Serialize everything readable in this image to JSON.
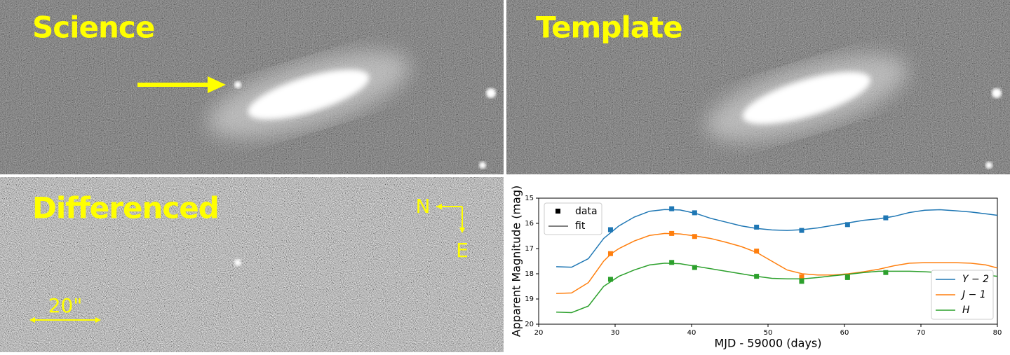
{
  "panels": {
    "science": "Science",
    "template": "Template",
    "differenced": "Differenced",
    "compass_n": "N",
    "compass_e": "E",
    "scale_bar": "20\""
  },
  "chart_data": {
    "type": "line",
    "x_label": "MJD - 59000 (days)",
    "y_label": "Apparent Magnitude (mag)",
    "xlim": [
      20,
      80
    ],
    "xticks": [
      20,
      30,
      40,
      50,
      60,
      70,
      80
    ],
    "ylim": [
      15,
      20
    ],
    "yticks": [
      15,
      16,
      17,
      18,
      19,
      20
    ],
    "y_inverted": true,
    "style_labels": [
      "data",
      "fit"
    ],
    "legend": "lower right",
    "x": [
      22.3,
      24.3,
      26.5,
      28.5,
      29.5,
      30.5,
      32.5,
      34.5,
      36.5,
      38.5,
      40.5,
      42.5,
      44.5,
      46.5,
      48.5,
      50.5,
      52.5,
      54.5,
      56.5,
      58.5,
      60.5,
      62.5,
      64.5,
      66.5,
      68.5,
      70.5,
      72.5,
      74.5,
      76.5,
      78.5,
      80
    ],
    "series": [
      {
        "name": "Y − 2",
        "color": "#1f77b4",
        "values": [
          17.72,
          17.74,
          17.4,
          16.6,
          16.35,
          16.1,
          15.75,
          15.52,
          15.45,
          15.47,
          15.6,
          15.8,
          15.95,
          16.1,
          16.2,
          16.26,
          16.28,
          16.25,
          16.18,
          16.08,
          15.98,
          15.88,
          15.82,
          15.72,
          15.57,
          15.48,
          15.46,
          15.5,
          15.55,
          15.62,
          15.68
        ],
        "points_x": [
          29.4,
          37.4,
          40.4,
          48.5,
          54.4,
          60.4,
          65.4
        ],
        "points": [
          16.25,
          15.42,
          15.58,
          16.15,
          16.28,
          16.05,
          15.78
        ]
      },
      {
        "name": "J − 1",
        "color": "#ff7f0e",
        "values": [
          18.78,
          18.76,
          18.35,
          17.5,
          17.2,
          17.0,
          16.7,
          16.48,
          16.4,
          16.42,
          16.5,
          16.6,
          16.75,
          16.92,
          17.15,
          17.5,
          17.85,
          18.0,
          18.05,
          18.05,
          18.0,
          17.92,
          17.82,
          17.68,
          17.58,
          17.56,
          17.56,
          17.56,
          17.58,
          17.65,
          17.77
        ],
        "points_x": [
          29.4,
          37.4,
          40.4,
          48.5,
          54.4,
          60.4
        ],
        "points": [
          17.2,
          16.4,
          16.52,
          17.1,
          18.12,
          18.1
        ]
      },
      {
        "name": "H",
        "color": "#2ca02c",
        "values": [
          19.52,
          19.54,
          19.28,
          18.5,
          18.3,
          18.1,
          17.85,
          17.65,
          17.58,
          17.6,
          17.7,
          17.8,
          17.9,
          18.0,
          18.1,
          18.18,
          18.2,
          18.2,
          18.15,
          18.08,
          18.02,
          17.95,
          17.9,
          17.9,
          17.9,
          17.92,
          17.95,
          17.98,
          18.0,
          18.05,
          18.1
        ],
        "points_x": [
          29.4,
          37.4,
          40.4,
          48.5,
          54.4,
          60.4,
          65.4
        ],
        "points": [
          18.22,
          17.55,
          17.75,
          18.1,
          18.3,
          18.15,
          17.95
        ]
      }
    ]
  }
}
